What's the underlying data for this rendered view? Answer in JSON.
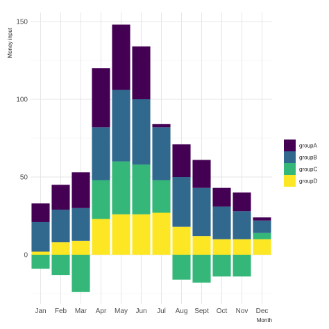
{
  "chart_data": {
    "type": "bar",
    "stacked": true,
    "xlabel": "Month",
    "ylabel": "Money input",
    "categories": [
      "Jan",
      "Feb",
      "Mar",
      "Apr",
      "May",
      "Jun",
      "Jul",
      "Aug",
      "Sept",
      "Oct",
      "Nov",
      "Dec"
    ],
    "series": [
      {
        "name": "groupA",
        "color": "#440154",
        "values": [
          12,
          16,
          23,
          38,
          42,
          34,
          2,
          21,
          18,
          12,
          12,
          2
        ]
      },
      {
        "name": "groupB",
        "color": "#31688E",
        "values": [
          19,
          21,
          21,
          34,
          46,
          42,
          34,
          32,
          31,
          21,
          18,
          8
        ]
      },
      {
        "name": "groupC",
        "color": "#35B779",
        "values": [
          -9,
          -13,
          -24,
          25,
          34,
          32,
          21,
          -16,
          -18,
          -14,
          -14,
          4
        ]
      },
      {
        "name": "groupD",
        "color": "#FDE725",
        "values": [
          2,
          8,
          9,
          23,
          26,
          26,
          27,
          18,
          12,
          10,
          10,
          10
        ]
      }
    ],
    "ylim": [
      -37,
      155
    ],
    "yticks": [
      0,
      50,
      100,
      150
    ],
    "grid": true,
    "legend_position": "right"
  }
}
